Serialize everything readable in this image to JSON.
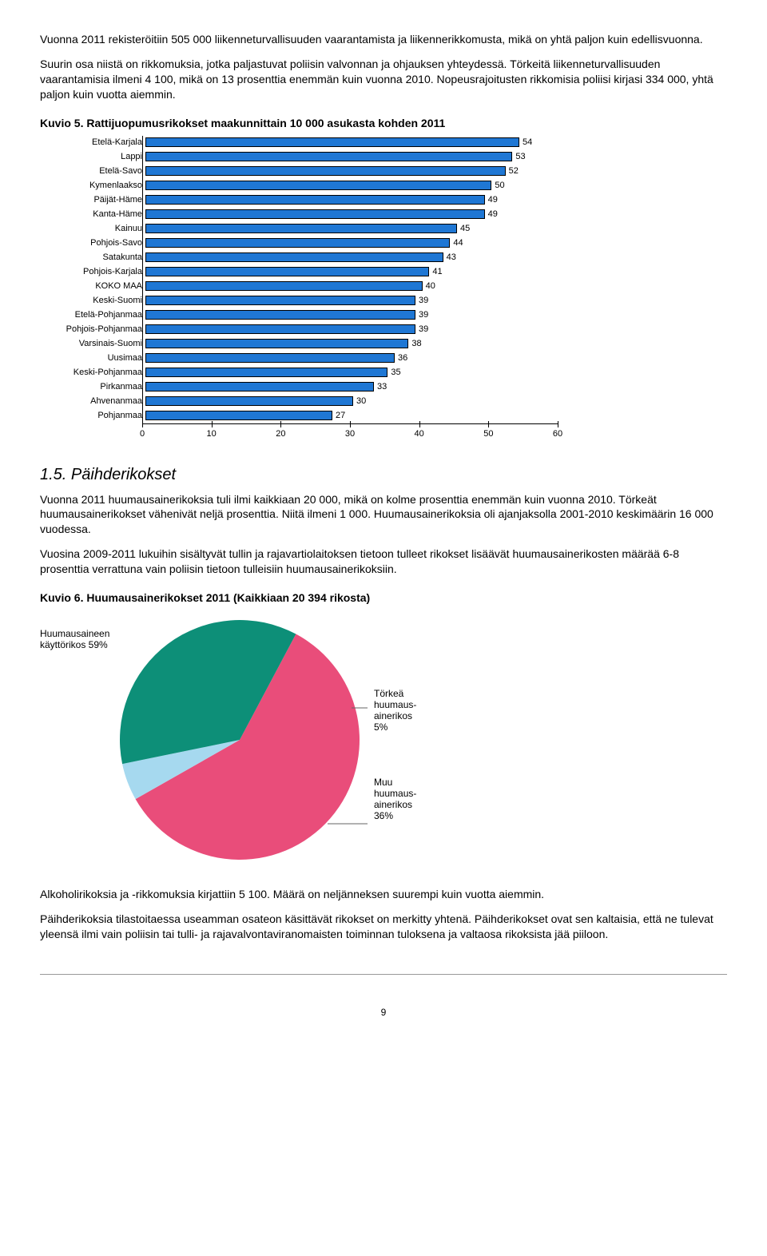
{
  "para1": "Vuonna 2011 rekisteröitiin 505 000 liikenneturvallisuuden vaarantamista ja liikennerikkomusta, mikä on yhtä paljon kuin edellisvuonna.",
  "para2": "Suurin osa niistä on rikkomuksia, jotka paljastuvat poliisin valvonnan ja ohjauksen yhteydessä. Törkeitä liikenneturvallisuuden vaarantamisia ilmeni 4 100, mikä on 13 prosenttia enemmän kuin vuonna 2010. Nopeusrajoitusten rikkomisia poliisi kirjasi 334 000, yhtä paljon kuin vuotta aiemmin.",
  "kuvio5_title": "Kuvio 5. Rattijuopumusrikokset maakunnittain 10 000 asukasta kohden 2011",
  "bar_chart": {
    "type": "bar",
    "rows": [
      {
        "label": "Etelä-Karjala",
        "value": 54
      },
      {
        "label": "Lappi",
        "value": 53
      },
      {
        "label": "Etelä-Savo",
        "value": 52
      },
      {
        "label": "Kymenlaakso",
        "value": 50
      },
      {
        "label": "Päijät-Häme",
        "value": 49
      },
      {
        "label": "Kanta-Häme",
        "value": 49
      },
      {
        "label": "Kainuu",
        "value": 45
      },
      {
        "label": "Pohjois-Savo",
        "value": 44
      },
      {
        "label": "Satakunta",
        "value": 43
      },
      {
        "label": "Pohjois-Karjala",
        "value": 41
      },
      {
        "label": "KOKO MAA",
        "value": 40
      },
      {
        "label": "Keski-Suomi",
        "value": 39
      },
      {
        "label": "Etelä-Pohjanmaa",
        "value": 39
      },
      {
        "label": "Pohjois-Pohjanmaa",
        "value": 39
      },
      {
        "label": "Varsinais-Suomi",
        "value": 38
      },
      {
        "label": "Uusimaa",
        "value": 36
      },
      {
        "label": "Keski-Pohjanmaa",
        "value": 35
      },
      {
        "label": "Pirkanmaa",
        "value": 33
      },
      {
        "label": "Ahvenanmaa",
        "value": 30
      },
      {
        "label": "Pohjanmaa",
        "value": 27
      }
    ],
    "xmax": 60,
    "xticks": [
      0,
      10,
      20,
      30,
      40,
      50,
      60
    ],
    "bar_color": "#1f77d4",
    "bar_border": "#000000",
    "label_fontsize": 11
  },
  "section_1_5_title": "1.5. Päihderikokset",
  "para3": "Vuonna 2011 huumausainerikoksia tuli ilmi kaikkiaan 20 000, mikä on kolme prosenttia enemmän kuin vuonna 2010. Törkeät huumausainerikokset vähenivät neljä prosenttia. Niitä ilmeni 1 000. Huumausainerikoksia oli ajanjaksolla 2001-2010 keskimäärin 16 000 vuodessa.",
  "para4": "Vuosina 2009-2011 lukuihin sisältyvät tullin ja rajavartiolaitoksen tietoon tulleet rikokset lisäävät huumausainerikosten määrää 6-8 prosenttia verrattuna vain poliisin tietoon tulleisiin huumausainerikoksiin.",
  "kuvio6_title": "Kuvio 6. Huumausainerikokset 2011 (Kaikkiaan 20 394 rikosta)",
  "pie": {
    "type": "pie",
    "slices": [
      {
        "label_lines": [
          "Huumausaineen",
          "käyttörikos 59%"
        ],
        "value": 59,
        "color": "#e94d7a"
      },
      {
        "label_lines": [
          "Törkeä",
          "huumaus-",
          "ainerikos",
          "5%"
        ],
        "value": 5,
        "color": "#a6d9ef"
      },
      {
        "label_lines": [
          "Muu",
          "huumaus-",
          "ainerikos",
          "36%"
        ],
        "value": 36,
        "color": "#0d8f78"
      }
    ],
    "radius": 150,
    "start_angle_deg": -62
  },
  "para5": "Alkoholirikoksia ja -rikkomuksia kirjattiin 5 100. Määrä on neljänneksen suurempi kuin vuotta aiemmin.",
  "para6": "Päihderikoksia tilastoitaessa useamman osateon käsittävät rikokset on merkitty yhtenä. Päihderikokset ovat sen kaltaisia, että ne tulevat yleensä ilmi vain poliisin tai tulli- ja rajavalvontaviranomaisten toiminnan tuloksena ja valtaosa rikoksista jää piiloon.",
  "page_number": "9"
}
